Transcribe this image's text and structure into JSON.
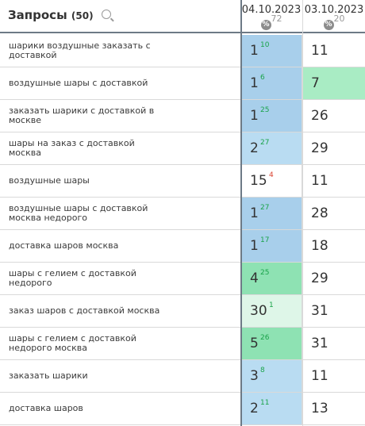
{
  "header": {
    "title": "Запросы",
    "count": "(50)",
    "columns": [
      {
        "date": "04.10.2023",
        "pct": "72"
      },
      {
        "date": "03.10.2023",
        "pct": "20"
      }
    ]
  },
  "colors": {
    "top1": "#a8cfeb",
    "top3": "#b9dcf2",
    "top5": "#8ee2b3",
    "green_cell": "#a9ecc4",
    "light_green": "#def6e8",
    "white": "#ffffff"
  },
  "rows": [
    {
      "query": "шарики воздушные заказать с доставкой",
      "pos1": "1",
      "chg": "10",
      "dir": "up",
      "pos2": "11",
      "bg1": "top1",
      "bg2": "white"
    },
    {
      "query": "воздушные шары с доставкой",
      "pos1": "1",
      "chg": "6",
      "dir": "up",
      "pos2": "7",
      "bg1": "top1",
      "bg2": "green_cell"
    },
    {
      "query": "заказать шарики с доставкой в москве",
      "pos1": "1",
      "chg": "25",
      "dir": "up",
      "pos2": "26",
      "bg1": "top1",
      "bg2": "white"
    },
    {
      "query": "шары на заказ с доставкой москва",
      "pos1": "2",
      "chg": "27",
      "dir": "up",
      "pos2": "29",
      "bg1": "top3",
      "bg2": "white"
    },
    {
      "query": "воздушные шары",
      "pos1": "15",
      "chg": "4",
      "dir": "down",
      "pos2": "11",
      "bg1": "white",
      "bg2": "white"
    },
    {
      "query": "воздушные шары с доставкой москва недорого",
      "pos1": "1",
      "chg": "27",
      "dir": "up",
      "pos2": "28",
      "bg1": "top1",
      "bg2": "white"
    },
    {
      "query": "доставка шаров москва",
      "pos1": "1",
      "chg": "17",
      "dir": "up",
      "pos2": "18",
      "bg1": "top1",
      "bg2": "white"
    },
    {
      "query": "шары с гелием с доставкой недорого",
      "pos1": "4",
      "chg": "25",
      "dir": "up",
      "pos2": "29",
      "bg1": "top5",
      "bg2": "white"
    },
    {
      "query": "заказ шаров с доставкой москва",
      "pos1": "30",
      "chg": "1",
      "dir": "up",
      "pos2": "31",
      "bg1": "light_green",
      "bg2": "white"
    },
    {
      "query": "шары с гелием с доставкой недорого москва",
      "pos1": "5",
      "chg": "26",
      "dir": "up",
      "pos2": "31",
      "bg1": "top5",
      "bg2": "white"
    },
    {
      "query": "заказать шарики",
      "pos1": "3",
      "chg": "8",
      "dir": "up",
      "pos2": "11",
      "bg1": "top3",
      "bg2": "white"
    },
    {
      "query": "доставка шаров",
      "pos1": "2",
      "chg": "11",
      "dir": "up",
      "pos2": "13",
      "bg1": "top3",
      "bg2": "white"
    }
  ]
}
